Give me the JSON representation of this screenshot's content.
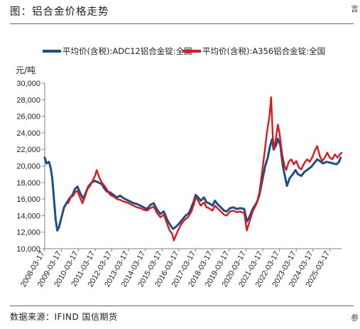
{
  "figure_title": "图：铝合金价格走势",
  "source_note": "数据来源：IFIND 国信期货",
  "edge_mark_top": "言",
  "edge_mark_bottom": "参",
  "colors": {
    "series_a": "#1b4f86",
    "series_b": "#e0161b",
    "axis": "#7f7f7f"
  },
  "chart_data": {
    "type": "line",
    "ylabel": "元/吨",
    "ylim": [
      10000,
      30000
    ],
    "yticks": [
      "10,000",
      "12,000",
      "14,000",
      "16,000",
      "18,000",
      "20,000",
      "22,000",
      "24,000",
      "26,000",
      "28,000",
      "30,000"
    ],
    "xticks": [
      "2008-03-17",
      "2009-03-17",
      "2010-03-17",
      "2011-03-17",
      "2012-03-17",
      "2013-03-17",
      "2014-03-17",
      "2015-03-17",
      "2016-03-17",
      "2017-03-17",
      "2018-03-17",
      "2019-03-17",
      "2020-03-17",
      "2021-03-17",
      "2022-03-17",
      "2023-03-17",
      "2024-03-17",
      "2025-03-17"
    ],
    "xlim": [
      2008.2,
      2025.9
    ],
    "legend_position": "top",
    "series": [
      {
        "name": "平均价(含税):ADC12铝合金锭:全国",
        "points": [
          [
            2008.2,
            21000
          ],
          [
            2008.3,
            20300
          ],
          [
            2008.45,
            20500
          ],
          [
            2008.55,
            19800
          ],
          [
            2008.65,
            18500
          ],
          [
            2008.75,
            16000
          ],
          [
            2008.85,
            13500
          ],
          [
            2008.95,
            12200
          ],
          [
            2009.05,
            12600
          ],
          [
            2009.2,
            13800
          ],
          [
            2009.35,
            15000
          ],
          [
            2009.5,
            15500
          ],
          [
            2009.65,
            16000
          ],
          [
            2009.85,
            16500
          ],
          [
            2010.0,
            17200
          ],
          [
            2010.15,
            17500
          ],
          [
            2010.3,
            16800
          ],
          [
            2010.5,
            16000
          ],
          [
            2010.65,
            16800
          ],
          [
            2010.8,
            17500
          ],
          [
            2011.0,
            18000
          ],
          [
            2011.2,
            18200
          ],
          [
            2011.4,
            18000
          ],
          [
            2011.6,
            17800
          ],
          [
            2011.75,
            17300
          ],
          [
            2011.9,
            16900
          ],
          [
            2012.1,
            16800
          ],
          [
            2012.3,
            16500
          ],
          [
            2012.5,
            16200
          ],
          [
            2012.7,
            16400
          ],
          [
            2012.9,
            16100
          ],
          [
            2013.1,
            15900
          ],
          [
            2013.3,
            15700
          ],
          [
            2013.5,
            15500
          ],
          [
            2013.7,
            15400
          ],
          [
            2013.9,
            15200
          ],
          [
            2014.1,
            15000
          ],
          [
            2014.3,
            14800
          ],
          [
            2014.5,
            15300
          ],
          [
            2014.7,
            15500
          ],
          [
            2014.9,
            14700
          ],
          [
            2015.1,
            14200
          ],
          [
            2015.3,
            14500
          ],
          [
            2015.5,
            13500
          ],
          [
            2015.7,
            12800
          ],
          [
            2015.85,
            12400
          ],
          [
            2016.0,
            12600
          ],
          [
            2016.2,
            13000
          ],
          [
            2016.4,
            13500
          ],
          [
            2016.6,
            14000
          ],
          [
            2016.8,
            14300
          ],
          [
            2016.95,
            15000
          ],
          [
            2017.1,
            15800
          ],
          [
            2017.2,
            16500
          ],
          [
            2017.35,
            16200
          ],
          [
            2017.5,
            15800
          ],
          [
            2017.7,
            16200
          ],
          [
            2017.85,
            15600
          ],
          [
            2018.0,
            15500
          ],
          [
            2018.2,
            15200
          ],
          [
            2018.35,
            15800
          ],
          [
            2018.5,
            15400
          ],
          [
            2018.7,
            15000
          ],
          [
            2018.9,
            14600
          ],
          [
            2019.05,
            14500
          ],
          [
            2019.25,
            14900
          ],
          [
            2019.45,
            15000
          ],
          [
            2019.65,
            14800
          ],
          [
            2019.85,
            14900
          ],
          [
            2020.1,
            14800
          ],
          [
            2020.25,
            13300
          ],
          [
            2020.4,
            13800
          ],
          [
            2020.6,
            14800
          ],
          [
            2020.85,
            15600
          ],
          [
            2021.0,
            16500
          ],
          [
            2021.2,
            18500
          ],
          [
            2021.35,
            20000
          ],
          [
            2021.5,
            21000
          ],
          [
            2021.65,
            22500
          ],
          [
            2021.75,
            23200
          ],
          [
            2021.85,
            22000
          ],
          [
            2022.0,
            22500
          ],
          [
            2022.1,
            23300
          ],
          [
            2022.25,
            22500
          ],
          [
            2022.4,
            20000
          ],
          [
            2022.55,
            18500
          ],
          [
            2022.65,
            17600
          ],
          [
            2022.8,
            18500
          ],
          [
            2023.0,
            19000
          ],
          [
            2023.15,
            19500
          ],
          [
            2023.3,
            19000
          ],
          [
            2023.5,
            18800
          ],
          [
            2023.7,
            19300
          ],
          [
            2023.9,
            19600
          ],
          [
            2024.1,
            19900
          ],
          [
            2024.3,
            20400
          ],
          [
            2024.45,
            20800
          ],
          [
            2024.6,
            20600
          ],
          [
            2024.8,
            20300
          ],
          [
            2025.0,
            20500
          ],
          [
            2025.2,
            20400
          ],
          [
            2025.4,
            20300
          ],
          [
            2025.6,
            20200
          ],
          [
            2025.75,
            20500
          ],
          [
            2025.85,
            21000
          ]
        ]
      },
      {
        "name": "平均价(含税):A356铝合金锭:全国",
        "points": [
          [
            2009.6,
            15500
          ],
          [
            2009.75,
            16200
          ],
          [
            2009.9,
            16400
          ],
          [
            2010.0,
            16800
          ],
          [
            2010.15,
            17000
          ],
          [
            2010.3,
            16200
          ],
          [
            2010.45,
            15500
          ],
          [
            2010.6,
            16300
          ],
          [
            2010.75,
            17200
          ],
          [
            2010.9,
            17600
          ],
          [
            2011.05,
            18200
          ],
          [
            2011.2,
            18800
          ],
          [
            2011.3,
            19500
          ],
          [
            2011.45,
            18600
          ],
          [
            2011.6,
            18000
          ],
          [
            2011.8,
            17500
          ],
          [
            2011.95,
            17000
          ],
          [
            2012.1,
            16500
          ],
          [
            2012.3,
            16300
          ],
          [
            2012.5,
            16000
          ],
          [
            2012.7,
            15900
          ],
          [
            2012.9,
            15700
          ],
          [
            2013.1,
            15600
          ],
          [
            2013.3,
            15400
          ],
          [
            2013.5,
            15200
          ],
          [
            2013.7,
            15000
          ],
          [
            2013.9,
            14900
          ],
          [
            2014.1,
            14700
          ],
          [
            2014.3,
            14600
          ],
          [
            2014.5,
            14900
          ],
          [
            2014.7,
            15100
          ],
          [
            2014.9,
            14300
          ],
          [
            2015.1,
            13800
          ],
          [
            2015.3,
            14100
          ],
          [
            2015.5,
            13000
          ],
          [
            2015.65,
            12200
          ],
          [
            2015.8,
            11800
          ],
          [
            2015.9,
            11000
          ],
          [
            2016.0,
            11500
          ],
          [
            2016.15,
            12200
          ],
          [
            2016.35,
            13000
          ],
          [
            2016.55,
            13500
          ],
          [
            2016.75,
            13800
          ],
          [
            2016.95,
            14500
          ],
          [
            2017.1,
            15400
          ],
          [
            2017.2,
            16200
          ],
          [
            2017.35,
            15800
          ],
          [
            2017.5,
            15200
          ],
          [
            2017.7,
            15600
          ],
          [
            2017.85,
            15000
          ],
          [
            2018.0,
            14900
          ],
          [
            2018.2,
            14600
          ],
          [
            2018.35,
            15200
          ],
          [
            2018.5,
            14900
          ],
          [
            2018.7,
            14500
          ],
          [
            2018.9,
            14100
          ],
          [
            2019.05,
            14000
          ],
          [
            2019.25,
            14500
          ],
          [
            2019.45,
            14600
          ],
          [
            2019.65,
            14400
          ],
          [
            2019.85,
            14500
          ],
          [
            2020.1,
            14300
          ],
          [
            2020.25,
            12200
          ],
          [
            2020.4,
            13200
          ],
          [
            2020.6,
            14500
          ],
          [
            2020.85,
            15500
          ],
          [
            2021.0,
            16800
          ],
          [
            2021.15,
            19000
          ],
          [
            2021.3,
            21500
          ],
          [
            2021.45,
            24000
          ],
          [
            2021.6,
            26000
          ],
          [
            2021.7,
            28300
          ],
          [
            2021.8,
            23500
          ],
          [
            2021.9,
            22000
          ],
          [
            2022.0,
            23500
          ],
          [
            2022.1,
            25000
          ],
          [
            2022.2,
            24000
          ],
          [
            2022.35,
            21500
          ],
          [
            2022.5,
            20000
          ],
          [
            2022.6,
            19500
          ],
          [
            2022.75,
            20500
          ],
          [
            2022.9,
            20800
          ],
          [
            2023.05,
            20200
          ],
          [
            2023.2,
            20600
          ],
          [
            2023.35,
            19800
          ],
          [
            2023.5,
            19600
          ],
          [
            2023.7,
            20400
          ],
          [
            2023.85,
            20800
          ],
          [
            2024.0,
            20500
          ],
          [
            2024.15,
            21000
          ],
          [
            2024.3,
            21800
          ],
          [
            2024.45,
            22400
          ],
          [
            2024.6,
            21200
          ],
          [
            2024.75,
            20600
          ],
          [
            2024.9,
            21000
          ],
          [
            2025.05,
            21600
          ],
          [
            2025.2,
            21000
          ],
          [
            2025.35,
            20800
          ],
          [
            2025.5,
            21400
          ],
          [
            2025.65,
            21000
          ],
          [
            2025.8,
            21400
          ],
          [
            2025.9,
            21600
          ]
        ]
      }
    ]
  }
}
